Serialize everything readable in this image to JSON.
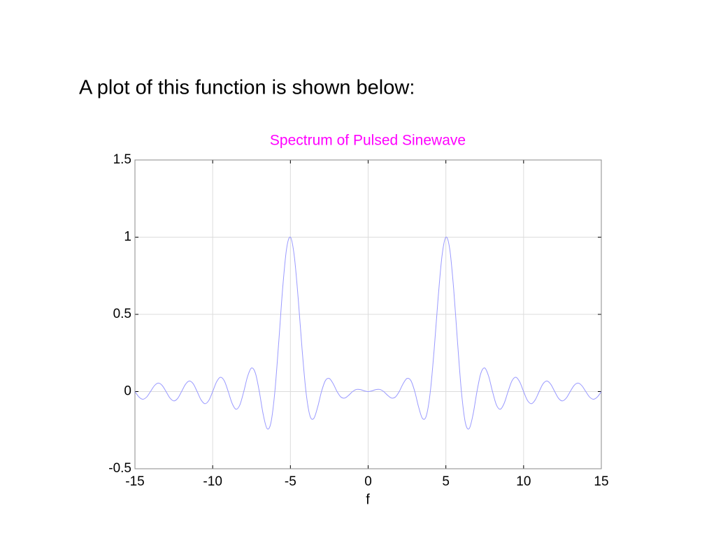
{
  "heading": "A plot of this function is shown below:",
  "chart_data": {
    "type": "line",
    "title": "Spectrum of Pulsed Sinewave",
    "x_label": "f",
    "x": [
      -15,
      -14.75,
      -14.5,
      -14.25,
      -14,
      -13.75,
      -13.5,
      -13.25,
      -13,
      -12.75,
      -12.5,
      -12.25,
      -12,
      -11.75,
      -11.5,
      -11.25,
      -11,
      -10.75,
      -10.5,
      -10.25,
      -10,
      -9.75,
      -9.5,
      -9.25,
      -9,
      -8.75,
      -8.5,
      -8.25,
      -8,
      -7.75,
      -7.5,
      -7.25,
      -7,
      -6.75,
      -6.5,
      -6.25,
      -6,
      -5.75,
      -5.5,
      -5.25,
      -5,
      -4.75,
      -4.5,
      -4.25,
      -4,
      -3.75,
      -3.5,
      -3.25,
      -3,
      -2.75,
      -2.5,
      -2.25,
      -2,
      -1.75,
      -1.5,
      -1.25,
      -1,
      -0.75,
      -0.5,
      -0.25,
      0,
      0.25,
      0.5,
      0.75,
      1,
      1.25,
      1.5,
      1.75,
      2,
      2.25,
      2.5,
      2.75,
      3,
      3.25,
      3.5,
      3.75,
      4,
      4.25,
      4.5,
      4.75,
      5,
      5.25,
      5.5,
      5.75,
      6,
      6.25,
      6.5,
      6.75,
      7,
      7.25,
      7.5,
      7.75,
      8,
      8.25,
      8.5,
      8.75,
      9,
      9.25,
      9.5,
      9.75,
      10,
      10.25,
      10.5,
      10.75,
      11,
      11.25,
      11.5,
      11.75,
      12,
      12.25,
      12.5,
      12.75,
      13,
      13.25,
      13.5,
      13.75,
      14,
      14.25,
      14.5,
      14.75,
      15
    ],
    "values": [
      0,
      -0.0345,
      -0.0498,
      -0.036,
      0,
      0.0377,
      0.0547,
      0.0396,
      0,
      -0.0417,
      -0.0606,
      -0.0441,
      0,
      0.0468,
      0.0683,
      0.0499,
      0,
      -0.0534,
      -0.0784,
      -0.0576,
      0,
      0.0626,
      0.0927,
      0.0688,
      0,
      -0.0764,
      -0.1145,
      -0.0862,
      0,
      0.0995,
      0.1528,
      0.1184,
      0,
      -0.1478,
      -0.2399,
      -0.2001,
      0,
      0.321,
      0.6669,
      0.9223,
      1,
      0.8772,
      0.6031,
      0.2758,
      0,
      -0.1543,
      -0.1748,
      -0.1013,
      0,
      0.071,
      0.0849,
      0.0508,
      0,
      -0.0359,
      -0.042,
      -0.024,
      0,
      0.0138,
      0.0129,
      0.0045,
      0,
      0.0045,
      0.0129,
      0.0138,
      0,
      -0.024,
      -0.042,
      -0.0359,
      0,
      0.0508,
      0.0849,
      0.071,
      0,
      -0.1013,
      -0.1748,
      -0.1543,
      0,
      0.2758,
      0.6031,
      0.8772,
      1,
      0.9223,
      0.6669,
      0.321,
      0,
      -0.2001,
      -0.2399,
      -0.1478,
      0,
      0.1184,
      0.1528,
      0.0995,
      0,
      -0.0862,
      -0.1145,
      -0.0764,
      0,
      0.0688,
      0.0927,
      0.0626,
      0,
      -0.0576,
      -0.0784,
      -0.0534,
      0,
      0.0499,
      0.0683,
      0.0468,
      0,
      -0.0441,
      -0.0606,
      -0.0417,
      0,
      0.0396,
      0.0547,
      0.0377,
      0,
      -0.036,
      -0.0498,
      -0.0345,
      0
    ],
    "color": "#9a9aff",
    "title_color": "#ff00ff",
    "xlim": [
      -15,
      15
    ],
    "xticks": [
      -15,
      -10,
      -5,
      0,
      5,
      10,
      15
    ],
    "ylim": [
      -0.5,
      1.5
    ],
    "yticks": [
      -0.5,
      0,
      0.5,
      1,
      1.5
    ],
    "grid": true
  }
}
